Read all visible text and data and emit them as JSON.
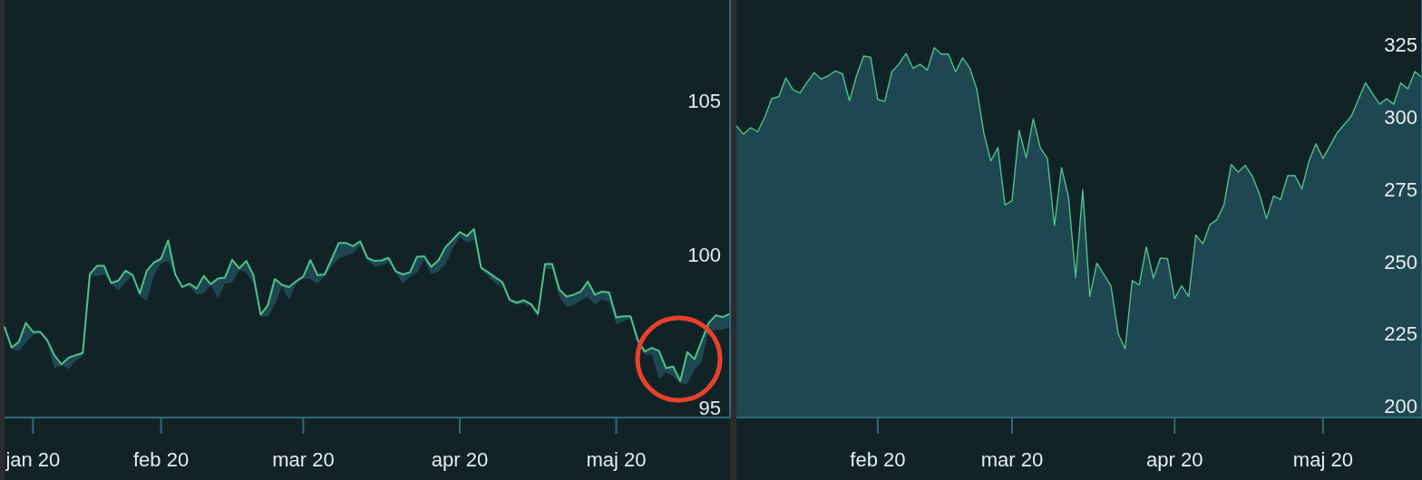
{
  "chart_data": [
    {
      "type": "line",
      "categories": [
        null,
        null,
        null,
        null,
        "jan 20",
        null,
        null,
        null,
        null,
        null,
        null,
        null,
        null,
        null,
        null,
        null,
        null,
        null,
        null,
        null,
        null,
        null,
        "feb 20",
        null,
        null,
        null,
        null,
        null,
        null,
        null,
        null,
        null,
        null,
        null,
        null,
        null,
        null,
        null,
        null,
        null,
        null,
        null,
        "mar 20",
        null,
        null,
        null,
        null,
        null,
        null,
        null,
        null,
        null,
        null,
        null,
        null,
        null,
        null,
        null,
        null,
        null,
        null,
        null,
        null,
        null,
        "apr 20",
        null,
        null,
        null,
        null,
        null,
        null,
        null,
        null,
        null,
        null,
        null,
        null,
        null,
        null,
        null,
        null,
        null,
        null,
        null,
        null,
        null,
        "maj 20",
        null,
        null,
        null,
        null,
        null,
        null,
        null,
        null,
        null,
        null,
        null,
        null,
        null,
        null,
        null,
        null
      ],
      "series": [
        {
          "color": "#4fc28a",
          "values": [
            97.64,
            96.98,
            97.16,
            97.78,
            97.49,
            97.49,
            97.22,
            96.73,
            96.43,
            96.65,
            96.73,
            96.8,
            99.38,
            99.64,
            99.64,
            99.08,
            99.16,
            99.48,
            99.34,
            98.74,
            99.48,
            99.75,
            99.87,
            100.47,
            99.36,
            98.95,
            99.06,
            98.9,
            99.31,
            99.04,
            99.23,
            99.26,
            99.84,
            99.56,
            99.8,
            99.33,
            98.05,
            98.35,
            99.21,
            99.02,
            98.95,
            99.14,
            99.29,
            99.83,
            99.34,
            99.36,
            99.87,
            100.39,
            100.39,
            100.28,
            100.44,
            99.9,
            99.8,
            99.82,
            99.9,
            99.46,
            99.36,
            99.43,
            99.94,
            99.95,
            99.61,
            99.82,
            100.25,
            100.49,
            100.74,
            100.61,
            100.84,
            99.58,
            99.43,
            99.26,
            99.11,
            98.54,
            98.44,
            98.52,
            98.4,
            98.08,
            99.7,
            99.7,
            98.87,
            98.64,
            98.7,
            98.8,
            99.13,
            98.7,
            98.8,
            98.77,
            97.96,
            98.0,
            98.0,
            97.24,
            96.85,
            96.97,
            96.87,
            96.31,
            96.36,
            95.89,
            96.83,
            96.6,
            97.19,
            97.78,
            98.03,
            97.97,
            98.08
          ],
          "lower": [
            97.64,
            96.92,
            96.87,
            97.14,
            97.39,
            97.44,
            97.14,
            96.31,
            96.41,
            96.28,
            96.55,
            96.7,
            99.31,
            99.31,
            99.36,
            99.06,
            98.84,
            99.11,
            99.34,
            98.67,
            98.5,
            99.31,
            99.72,
            99.8,
            99.36,
            98.95,
            98.97,
            98.7,
            98.74,
            99.02,
            98.57,
            99.06,
            99.11,
            99.51,
            99.43,
            99.06,
            97.98,
            97.98,
            98.37,
            98.97,
            98.54,
            99.06,
            99.23,
            99.21,
            99.06,
            99.31,
            99.63,
            99.88,
            99.98,
            100.05,
            100.3,
            99.85,
            99.61,
            99.66,
            99.75,
            99.41,
            99.06,
            99.29,
            99.41,
            99.85,
            99.36,
            99.46,
            99.7,
            100.2,
            100.59,
            100.39,
            100.49,
            99.51,
            99.31,
            99.06,
            98.97,
            98.47,
            98.37,
            98.42,
            98.31,
            97.95,
            99.56,
            99.51,
            98.62,
            98.31,
            98.35,
            98.52,
            98.62,
            98.37,
            98.54,
            98.47,
            97.75,
            97.83,
            97.93,
            97.1,
            96.75,
            96.75,
            95.96,
            96.16,
            96.04,
            95.81,
            95.79,
            96.26,
            96.5,
            97.54,
            97.54,
            97.56,
            97.64
          ],
          "upper": [
            97.64,
            96.98,
            97.16,
            97.78,
            97.49,
            97.49,
            97.22,
            96.73,
            96.43,
            96.65,
            96.73,
            96.8,
            99.38,
            99.64,
            99.64,
            99.08,
            99.16,
            99.48,
            99.34,
            98.74,
            99.48,
            99.75,
            99.87,
            100.47,
            99.36,
            98.95,
            99.06,
            98.9,
            99.31,
            99.04,
            99.23,
            99.26,
            99.84,
            99.56,
            99.8,
            99.33,
            98.05,
            98.35,
            99.21,
            99.02,
            98.95,
            99.14,
            99.29,
            99.83,
            99.34,
            99.36,
            99.87,
            100.39,
            100.39,
            100.28,
            100.44,
            99.9,
            99.8,
            99.82,
            99.9,
            99.46,
            99.36,
            99.43,
            99.94,
            99.95,
            99.61,
            99.82,
            100.25,
            100.49,
            100.74,
            100.61,
            100.84,
            99.58,
            99.43,
            99.26,
            99.11,
            98.54,
            98.44,
            98.52,
            98.4,
            98.08,
            99.7,
            99.7,
            98.87,
            98.64,
            98.7,
            98.8,
            99.13,
            98.7,
            98.8,
            98.77,
            97.96,
            98.0,
            98.0,
            97.24,
            96.85,
            96.97,
            96.87,
            96.31,
            96.36,
            95.89,
            96.83,
            96.6,
            97.19,
            97.78,
            98.03,
            97.97,
            98.08
          ]
        }
      ],
      "ylim": [
        94.7,
        108.3
      ],
      "yticks": [
        95,
        100,
        105
      ]
    },
    {
      "type": "area",
      "categories": [
        null,
        null,
        null,
        null,
        null,
        null,
        null,
        null,
        null,
        null,
        null,
        null,
        null,
        null,
        null,
        null,
        null,
        null,
        null,
        null,
        "feb 20",
        null,
        null,
        null,
        null,
        null,
        null,
        null,
        null,
        null,
        null,
        null,
        null,
        null,
        null,
        null,
        null,
        null,
        null,
        "mar 20",
        null,
        null,
        null,
        null,
        null,
        null,
        null,
        null,
        null,
        null,
        null,
        null,
        null,
        null,
        null,
        null,
        null,
        null,
        null,
        null,
        null,
        null,
        "apr 20",
        null,
        null,
        null,
        null,
        null,
        null,
        null,
        null,
        null,
        null,
        null,
        null,
        null,
        null,
        null,
        null,
        null,
        null,
        null,
        null,
        "maj 20",
        null,
        null,
        null,
        null,
        null,
        null,
        null,
        null,
        null,
        null,
        null,
        null,
        null,
        null
      ],
      "series": [
        {
          "color": "#4fc28a",
          "values": [
            296.9,
            294.0,
            296.3,
            294.9,
            299.8,
            306.3,
            307.0,
            313.5,
            309.4,
            308.3,
            312.0,
            315.3,
            313.1,
            314.2,
            315.9,
            314.9,
            305.6,
            314.2,
            321.0,
            320.6,
            306.0,
            305.4,
            315.6,
            318.3,
            321.9,
            316.8,
            318.2,
            316.2,
            323.9,
            321.7,
            321.7,
            315.6,
            320.4,
            317.0,
            309.7,
            294.6,
            284.8,
            289.4,
            269.6,
            271.1,
            295.4,
            285.9,
            299.4,
            289.4,
            285.6,
            262.5,
            282.5,
            272.2,
            244.6,
            274.8,
            238.0,
            249.5,
            245.6,
            241.7,
            225.3,
            219.9,
            243.5,
            242.0,
            255.2,
            244.3,
            251.3,
            251.0,
            237.3,
            241.7,
            238.0,
            259.2,
            256.2,
            262.8,
            264.6,
            269.8,
            283.6,
            281.0,
            283.3,
            279.5,
            273.4,
            264.9,
            272.7,
            271.5,
            279.7,
            279.8,
            275.1,
            284.7,
            290.7,
            285.7,
            290.1,
            294.6,
            297.4,
            300.3,
            306.0,
            311.8,
            308.1,
            304.4,
            306.3,
            304.4,
            311.8,
            309.7,
            315.7,
            313.6
          ]
        }
      ],
      "ylim": [
        196.2,
        340.4
      ],
      "yticks": [
        200,
        225,
        250,
        275,
        300,
        325
      ]
    }
  ]
}
